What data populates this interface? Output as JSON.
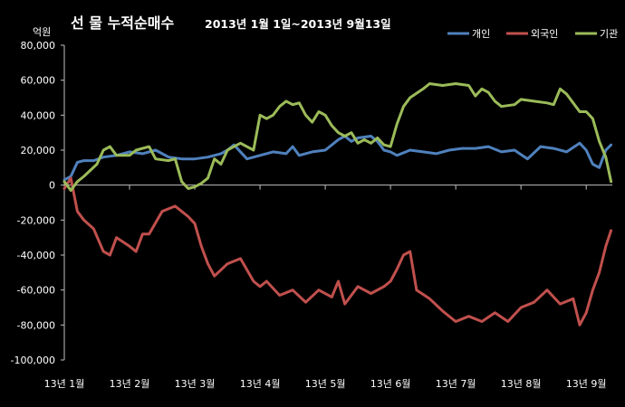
{
  "chart_data": {
    "type": "line",
    "title_main": "선 물 누적순매수",
    "title_sub": "2013년 1월 1일~2013년 9월13일",
    "unit_label": "억원",
    "ylim": [
      -100000,
      80000
    ],
    "yticks": [
      80000,
      60000,
      40000,
      20000,
      0,
      -20000,
      -40000,
      -60000,
      -80000,
      -100000
    ],
    "ytick_labels": [
      "80,000",
      "60,000",
      "40,000",
      "20,000",
      "0",
      "-20,000",
      "-40,000",
      "-60,000",
      "-80,000",
      "-100,000"
    ],
    "xlim": [
      0,
      8.4
    ],
    "x_ticks": [
      {
        "x": 0,
        "label": "13년 1월"
      },
      {
        "x": 1,
        "label": "13년 2월"
      },
      {
        "x": 2,
        "label": "13년 3월"
      },
      {
        "x": 3,
        "label": "13년 4월"
      },
      {
        "x": 4,
        "label": "13년 5월"
      },
      {
        "x": 5,
        "label": "13년 6월"
      },
      {
        "x": 6,
        "label": "13년 7월"
      },
      {
        "x": 7,
        "label": "13년 8월"
      },
      {
        "x": 8,
        "label": "13년 9월"
      }
    ],
    "grid": false,
    "legend_position": "top-right",
    "series": [
      {
        "name": "개인",
        "color": "#4f81bd",
        "points": [
          [
            0.0,
            3000
          ],
          [
            0.1,
            5000
          ],
          [
            0.2,
            13000
          ],
          [
            0.3,
            14000
          ],
          [
            0.45,
            14000
          ],
          [
            0.6,
            16000
          ],
          [
            0.8,
            17000
          ],
          [
            1.0,
            19000
          ],
          [
            1.2,
            18000
          ],
          [
            1.4,
            20000
          ],
          [
            1.6,
            16000
          ],
          [
            1.8,
            15000
          ],
          [
            2.0,
            15000
          ],
          [
            2.2,
            16000
          ],
          [
            2.4,
            18000
          ],
          [
            2.5,
            20000
          ],
          [
            2.6,
            23000
          ],
          [
            2.8,
            15000
          ],
          [
            3.0,
            17000
          ],
          [
            3.2,
            19000
          ],
          [
            3.4,
            18000
          ],
          [
            3.5,
            22000
          ],
          [
            3.6,
            17000
          ],
          [
            3.8,
            19000
          ],
          [
            4.0,
            20000
          ],
          [
            4.2,
            26000
          ],
          [
            4.3,
            28000
          ],
          [
            4.4,
            25000
          ],
          [
            4.5,
            27000
          ],
          [
            4.7,
            28000
          ],
          [
            4.8,
            25000
          ],
          [
            4.9,
            20000
          ],
          [
            5.0,
            19000
          ],
          [
            5.1,
            17000
          ],
          [
            5.3,
            20000
          ],
          [
            5.5,
            19000
          ],
          [
            5.7,
            18000
          ],
          [
            5.9,
            20000
          ],
          [
            6.1,
            21000
          ],
          [
            6.3,
            21000
          ],
          [
            6.5,
            22000
          ],
          [
            6.7,
            19000
          ],
          [
            6.9,
            20000
          ],
          [
            7.1,
            15000
          ],
          [
            7.3,
            22000
          ],
          [
            7.5,
            21000
          ],
          [
            7.7,
            19000
          ],
          [
            7.9,
            24000
          ],
          [
            8.0,
            20000
          ],
          [
            8.1,
            12000
          ],
          [
            8.2,
            10000
          ],
          [
            8.3,
            20000
          ],
          [
            8.38,
            23000
          ]
        ]
      },
      {
        "name": "외국인",
        "color": "#c0504d",
        "points": [
          [
            0.0,
            -2000
          ],
          [
            0.1,
            4000
          ],
          [
            0.2,
            -15000
          ],
          [
            0.3,
            -20000
          ],
          [
            0.45,
            -25000
          ],
          [
            0.6,
            -38000
          ],
          [
            0.7,
            -40000
          ],
          [
            0.8,
            -30000
          ],
          [
            1.0,
            -35000
          ],
          [
            1.1,
            -38000
          ],
          [
            1.2,
            -28000
          ],
          [
            1.3,
            -28000
          ],
          [
            1.5,
            -15000
          ],
          [
            1.7,
            -12000
          ],
          [
            1.9,
            -18000
          ],
          [
            2.0,
            -22000
          ],
          [
            2.1,
            -35000
          ],
          [
            2.2,
            -45000
          ],
          [
            2.3,
            -52000
          ],
          [
            2.5,
            -45000
          ],
          [
            2.7,
            -42000
          ],
          [
            2.9,
            -55000
          ],
          [
            3.0,
            -58000
          ],
          [
            3.1,
            -55000
          ],
          [
            3.3,
            -63000
          ],
          [
            3.5,
            -60000
          ],
          [
            3.7,
            -67000
          ],
          [
            3.9,
            -60000
          ],
          [
            4.1,
            -64000
          ],
          [
            4.2,
            -55000
          ],
          [
            4.3,
            -68000
          ],
          [
            4.5,
            -58000
          ],
          [
            4.7,
            -62000
          ],
          [
            4.9,
            -58000
          ],
          [
            5.0,
            -55000
          ],
          [
            5.1,
            -48000
          ],
          [
            5.2,
            -40000
          ],
          [
            5.3,
            -38000
          ],
          [
            5.4,
            -60000
          ],
          [
            5.6,
            -65000
          ],
          [
            5.8,
            -72000
          ],
          [
            6.0,
            -78000
          ],
          [
            6.2,
            -75000
          ],
          [
            6.4,
            -78000
          ],
          [
            6.6,
            -73000
          ],
          [
            6.8,
            -78000
          ],
          [
            7.0,
            -70000
          ],
          [
            7.2,
            -67000
          ],
          [
            7.4,
            -60000
          ],
          [
            7.6,
            -68000
          ],
          [
            7.8,
            -65000
          ],
          [
            7.9,
            -80000
          ],
          [
            8.0,
            -73000
          ],
          [
            8.1,
            -60000
          ],
          [
            8.2,
            -50000
          ],
          [
            8.3,
            -35000
          ],
          [
            8.38,
            -26000
          ]
        ]
      },
      {
        "name": "기관",
        "color": "#9bbb59",
        "points": [
          [
            0.0,
            2000
          ],
          [
            0.1,
            -3000
          ],
          [
            0.2,
            2000
          ],
          [
            0.3,
            5000
          ],
          [
            0.5,
            12000
          ],
          [
            0.6,
            20000
          ],
          [
            0.7,
            22000
          ],
          [
            0.8,
            17000
          ],
          [
            1.0,
            17000
          ],
          [
            1.1,
            20000
          ],
          [
            1.3,
            22000
          ],
          [
            1.4,
            15000
          ],
          [
            1.6,
            14000
          ],
          [
            1.7,
            15000
          ],
          [
            1.8,
            2000
          ],
          [
            1.9,
            -2000
          ],
          [
            2.0,
            -1000
          ],
          [
            2.1,
            1000
          ],
          [
            2.2,
            4000
          ],
          [
            2.3,
            15000
          ],
          [
            2.4,
            12000
          ],
          [
            2.5,
            20000
          ],
          [
            2.6,
            22000
          ],
          [
            2.7,
            24000
          ],
          [
            2.9,
            20000
          ],
          [
            3.0,
            40000
          ],
          [
            3.1,
            38000
          ],
          [
            3.2,
            40000
          ],
          [
            3.3,
            45000
          ],
          [
            3.4,
            48000
          ],
          [
            3.5,
            46000
          ],
          [
            3.6,
            47000
          ],
          [
            3.7,
            40000
          ],
          [
            3.8,
            36000
          ],
          [
            3.9,
            42000
          ],
          [
            4.0,
            40000
          ],
          [
            4.1,
            34000
          ],
          [
            4.2,
            30000
          ],
          [
            4.3,
            28000
          ],
          [
            4.4,
            30000
          ],
          [
            4.5,
            24000
          ],
          [
            4.6,
            26000
          ],
          [
            4.7,
            24000
          ],
          [
            4.8,
            27000
          ],
          [
            4.9,
            23000
          ],
          [
            5.0,
            22000
          ],
          [
            5.1,
            35000
          ],
          [
            5.2,
            45000
          ],
          [
            5.3,
            50000
          ],
          [
            5.5,
            55000
          ],
          [
            5.6,
            58000
          ],
          [
            5.8,
            57000
          ],
          [
            6.0,
            58000
          ],
          [
            6.2,
            57000
          ],
          [
            6.3,
            51000
          ],
          [
            6.4,
            55000
          ],
          [
            6.5,
            53000
          ],
          [
            6.6,
            48000
          ],
          [
            6.7,
            45000
          ],
          [
            6.9,
            46000
          ],
          [
            7.0,
            49000
          ],
          [
            7.2,
            48000
          ],
          [
            7.4,
            47000
          ],
          [
            7.5,
            46000
          ],
          [
            7.6,
            55000
          ],
          [
            7.7,
            52000
          ],
          [
            7.8,
            47000
          ],
          [
            7.9,
            42000
          ],
          [
            8.0,
            42000
          ],
          [
            8.1,
            38000
          ],
          [
            8.2,
            25000
          ],
          [
            8.3,
            16000
          ],
          [
            8.38,
            2000
          ]
        ]
      }
    ]
  }
}
